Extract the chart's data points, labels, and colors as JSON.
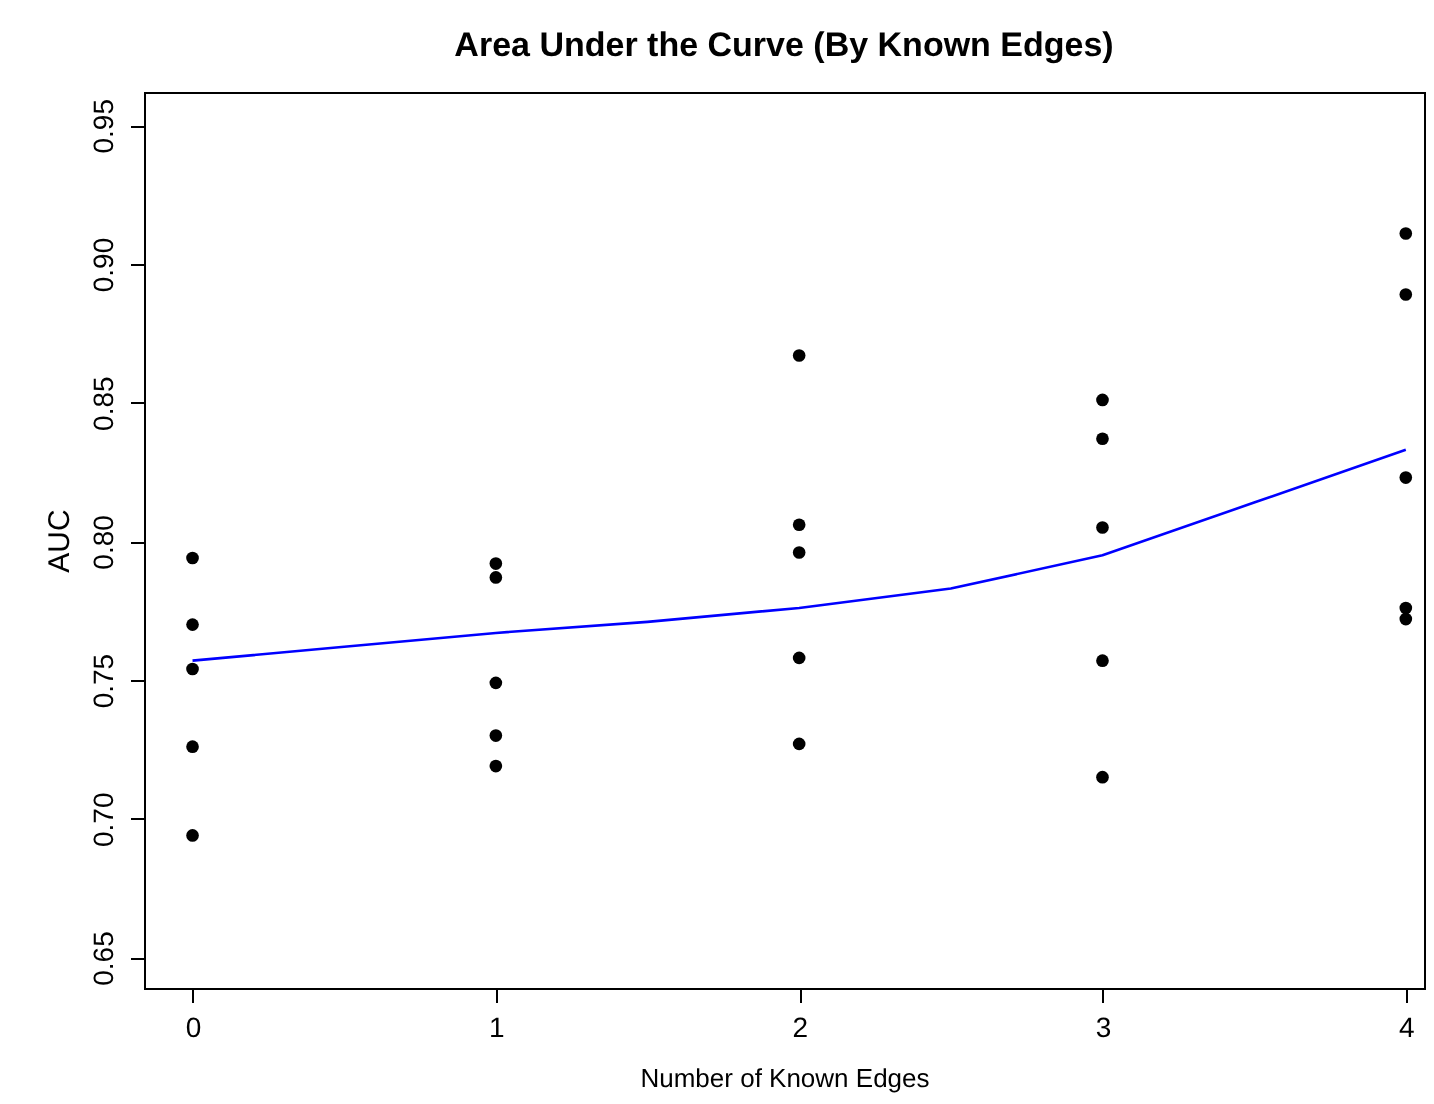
{
  "chart_data": {
    "type": "scatter",
    "title": "Area Under the Curve (By Known Edges)",
    "xlabel": "Number of Known Edges",
    "ylabel": "AUC",
    "xlim": [
      -0.16,
      4.06
    ],
    "ylim": [
      0.639,
      0.962
    ],
    "xticks": [
      0,
      1,
      2,
      3,
      4
    ],
    "yticks": [
      {
        "value": 0.65,
        "label": "0.65"
      },
      {
        "value": 0.7,
        "label": "0.70"
      },
      {
        "value": 0.75,
        "label": "0.75"
      },
      {
        "value": 0.8,
        "label": "0.80"
      },
      {
        "value": 0.85,
        "label": "0.85"
      },
      {
        "value": 0.9,
        "label": "0.90"
      },
      {
        "value": 0.95,
        "label": "0.95"
      }
    ],
    "grid": false,
    "series": [
      {
        "marker": "circle",
        "color": "#000000",
        "x": [
          0,
          0,
          0,
          0,
          0,
          1,
          1,
          1,
          1,
          1,
          2,
          2,
          2,
          2,
          2,
          3,
          3,
          3,
          3,
          3,
          4,
          4,
          4,
          4,
          4
        ],
        "values": [
          0.794,
          0.77,
          0.754,
          0.726,
          0.694,
          0.792,
          0.787,
          0.749,
          0.73,
          0.719,
          0.867,
          0.806,
          0.796,
          0.758,
          0.727,
          0.851,
          0.837,
          0.805,
          0.757,
          0.715,
          0.911,
          0.889,
          0.823,
          0.776,
          0.772
        ]
      },
      {
        "type": "line",
        "marker": "none",
        "color": "#0000ff",
        "line_style": "solid",
        "x": [
          0,
          0.5,
          1,
          1.5,
          2,
          2.5,
          3,
          3.5,
          4
        ],
        "values": [
          0.757,
          0.762,
          0.767,
          0.771,
          0.776,
          0.783,
          0.795,
          0.814,
          0.833
        ]
      }
    ]
  }
}
